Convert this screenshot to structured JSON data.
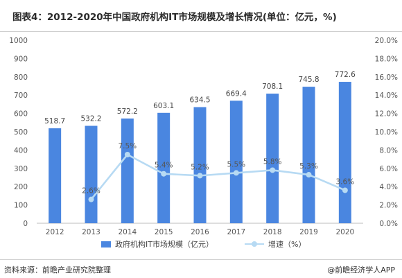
{
  "title": "图表4：2012-2020年中国政府机构IT市场规模及增长情况(单位：亿元，%)",
  "source": "资料来源：前瞻产业研究院整理",
  "brand": "@前瞻经济学人APP",
  "colors": {
    "bar": "#4a86e0",
    "line": "#b7daf3"
  },
  "chart_data": {
    "type": "bar",
    "categories": [
      "2012",
      "2013",
      "2014",
      "2015",
      "2016",
      "2017",
      "2018",
      "2019",
      "2020"
    ],
    "series": [
      {
        "name": "政府机构IT市场规模（亿元）",
        "type": "bar",
        "axis": "left",
        "values": [
          518.7,
          532.2,
          572.2,
          603.1,
          634.5,
          669.4,
          708.1,
          745.8,
          772.6
        ],
        "labels": [
          "518.7",
          "532.2",
          "572.2",
          "603.1",
          "634.5",
          "669.4",
          "708.1",
          "745.8",
          "772.6"
        ]
      },
      {
        "name": "增速（%）",
        "type": "line",
        "axis": "right",
        "values": [
          null,
          2.6,
          7.5,
          5.4,
          5.2,
          5.5,
          5.8,
          5.3,
          3.6
        ],
        "labels": [
          "",
          "2.6%",
          "7.5%",
          "5.4%",
          "5.2%",
          "5.5%",
          "5.8%",
          "5.3%",
          "3.6%"
        ]
      }
    ],
    "y_left": {
      "min": 0,
      "max": 1000,
      "step": 100,
      "ticks": [
        "0",
        "100",
        "200",
        "300",
        "400",
        "500",
        "600",
        "700",
        "800",
        "900",
        "1000"
      ]
    },
    "y_right": {
      "min": 0,
      "max": 20,
      "step": 2,
      "ticks": [
        "0.0%",
        "2.0%",
        "4.0%",
        "6.0%",
        "8.0%",
        "10.0%",
        "12.0%",
        "14.0%",
        "16.0%",
        "18.0%",
        "20.0%"
      ]
    },
    "grid": false,
    "legend_position": "bottom"
  }
}
